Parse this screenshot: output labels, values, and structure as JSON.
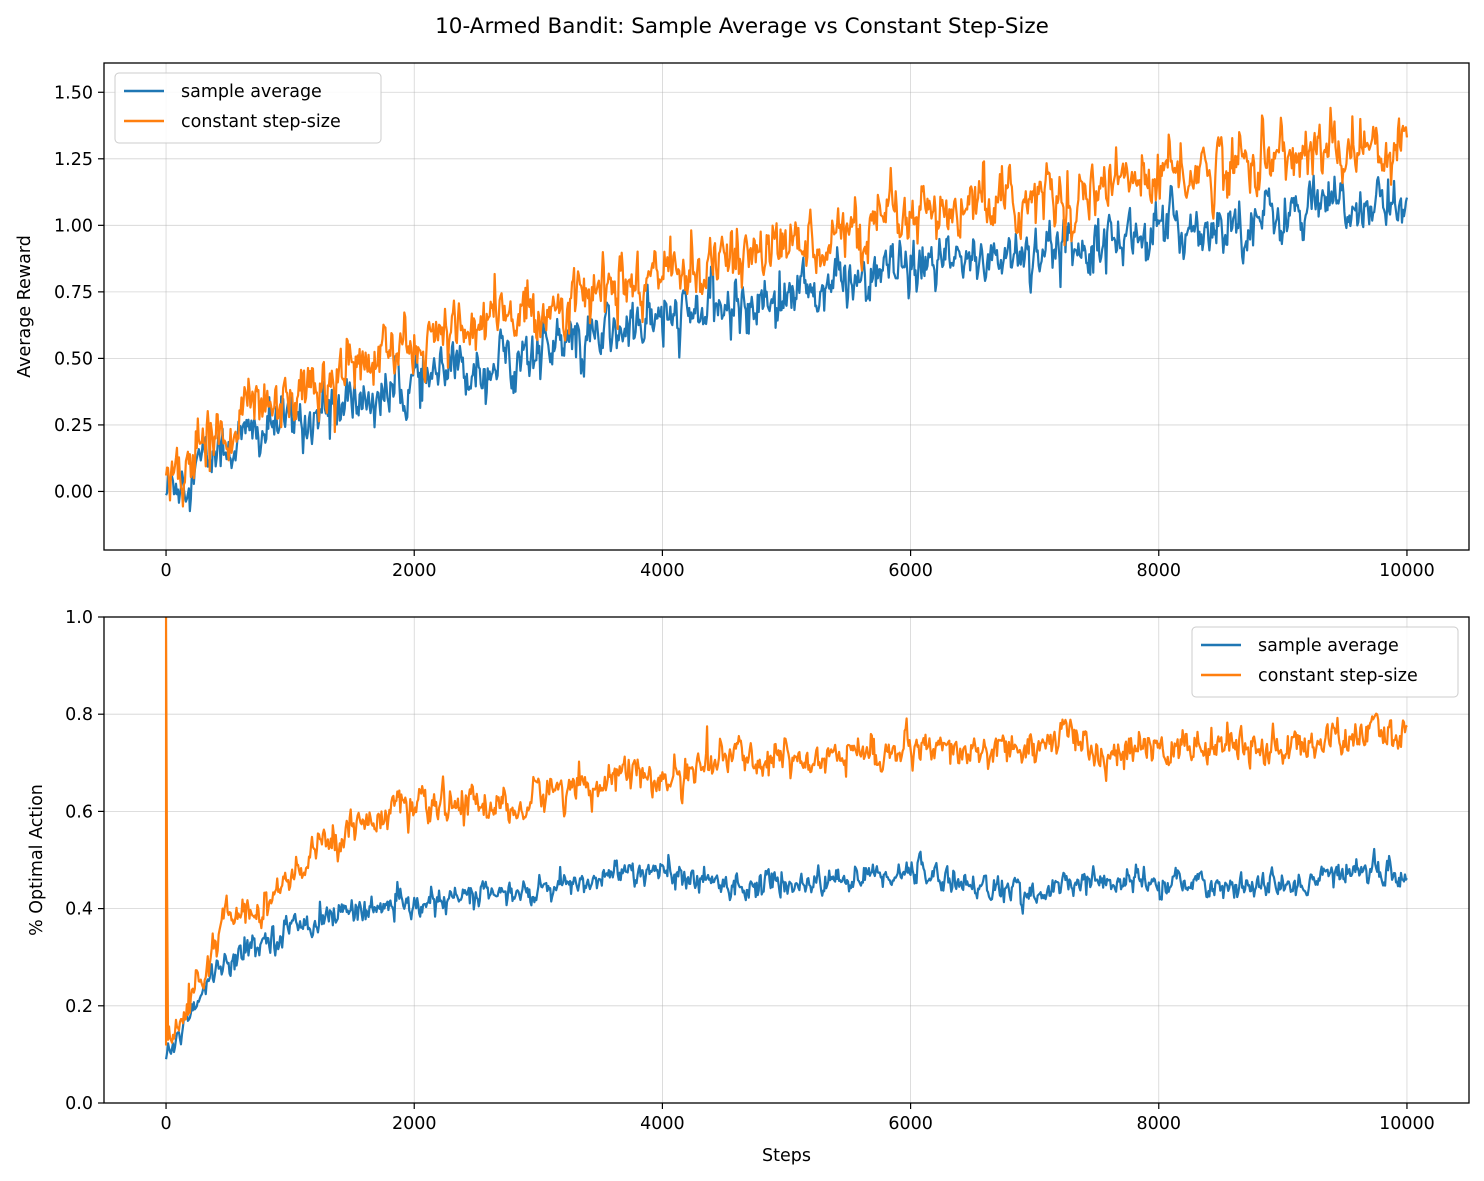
{
  "figure": {
    "title": "10-Armed Bandit: Sample Average vs Constant Step-Size"
  },
  "colors": {
    "sample_average": "#1f77b4",
    "constant_step_size": "#ff7f0e",
    "grid": "#b0b0b0",
    "axes": "#000000"
  },
  "chart_data": [
    {
      "type": "line",
      "title": "",
      "xlabel": "",
      "ylabel": "Average Reward",
      "xlim": [
        -500,
        10500
      ],
      "ylim": [
        -0.22,
        1.61
      ],
      "xticks": [
        0,
        2000,
        4000,
        6000,
        8000,
        10000
      ],
      "xtick_labels": [
        "0",
        "2000",
        "4000",
        "6000",
        "8000",
        "10000"
      ],
      "yticks": [
        0.0,
        0.25,
        0.5,
        0.75,
        1.0,
        1.25,
        1.5
      ],
      "ytick_labels": [
        "0.00",
        "0.25",
        "0.50",
        "0.75",
        "1.00",
        "1.25",
        "1.50"
      ],
      "grid": true,
      "legend_position": "upper-left",
      "series": [
        {
          "name": "sample average",
          "color_key": "sample_average",
          "x": [
            0,
            100,
            250,
            500,
            750,
            1000,
            1500,
            2000,
            2500,
            3000,
            3500,
            4000,
            4500,
            5000,
            5500,
            6000,
            6500,
            7000,
            7500,
            8000,
            8500,
            9000,
            9500,
            10000
          ],
          "values": [
            0.0,
            0.05,
            0.1,
            0.17,
            0.22,
            0.26,
            0.33,
            0.4,
            0.47,
            0.53,
            0.58,
            0.64,
            0.69,
            0.74,
            0.79,
            0.83,
            0.87,
            0.91,
            0.95,
            0.98,
            1.01,
            1.04,
            1.07,
            1.09
          ],
          "noise": 0.045
        },
        {
          "name": "constant step-size",
          "color_key": "constant_step_size",
          "x": [
            0,
            100,
            250,
            500,
            750,
            1000,
            1500,
            2000,
            2500,
            3000,
            3500,
            4000,
            4500,
            5000,
            5500,
            6000,
            6500,
            7000,
            7500,
            8000,
            8500,
            9000,
            9500,
            10000
          ],
          "values": [
            0.02,
            0.08,
            0.16,
            0.25,
            0.32,
            0.37,
            0.46,
            0.54,
            0.62,
            0.69,
            0.75,
            0.81,
            0.87,
            0.92,
            0.97,
            1.01,
            1.06,
            1.1,
            1.14,
            1.18,
            1.22,
            1.26,
            1.29,
            1.31
          ],
          "noise": 0.05
        }
      ]
    },
    {
      "type": "line",
      "title": "",
      "xlabel": "Steps",
      "ylabel": "% Optimal Action",
      "xlim": [
        -500,
        10500
      ],
      "ylim": [
        0.0,
        1.0
      ],
      "xticks": [
        0,
        2000,
        4000,
        6000,
        8000,
        10000
      ],
      "xtick_labels": [
        "0",
        "2000",
        "4000",
        "6000",
        "8000",
        "10000"
      ],
      "yticks": [
        0.0,
        0.2,
        0.4,
        0.6,
        0.8,
        1.0
      ],
      "ytick_labels": [
        "0.0",
        "0.2",
        "0.4",
        "0.6",
        "0.8",
        "1.0"
      ],
      "grid": true,
      "legend_position": "upper-right",
      "series": [
        {
          "name": "sample average",
          "color_key": "sample_average",
          "x": [
            0,
            50,
            150,
            300,
            500,
            750,
            1000,
            1250,
            1500,
            1750,
            2000,
            2500,
            3000,
            3500,
            3600,
            4000,
            4500,
            5000,
            5500,
            6000,
            6500,
            7000,
            7500,
            8000,
            8500,
            9000,
            9500,
            10000
          ],
          "values": [
            0.1,
            0.11,
            0.17,
            0.24,
            0.3,
            0.33,
            0.36,
            0.38,
            0.4,
            0.4,
            0.4,
            0.43,
            0.43,
            0.46,
            0.48,
            0.47,
            0.45,
            0.45,
            0.46,
            0.48,
            0.45,
            0.43,
            0.46,
            0.45,
            0.45,
            0.44,
            0.48,
            0.47
          ],
          "noise": 0.012
        },
        {
          "name": "constant step-size",
          "color_key": "constant_step_size",
          "x": [
            0,
            5,
            10,
            50,
            150,
            300,
            500,
            750,
            1000,
            1250,
            1500,
            1750,
            2000,
            2500,
            2900,
            3000,
            3500,
            3600,
            4000,
            4300,
            4500,
            5000,
            5500,
            6000,
            6500,
            7000,
            7400,
            7500,
            8000,
            8500,
            9000,
            9500,
            10000
          ],
          "values": [
            1.0,
            1.0,
            0.12,
            0.13,
            0.18,
            0.27,
            0.38,
            0.41,
            0.45,
            0.53,
            0.57,
            0.6,
            0.6,
            0.62,
            0.6,
            0.64,
            0.66,
            0.69,
            0.66,
            0.69,
            0.71,
            0.71,
            0.72,
            0.72,
            0.72,
            0.73,
            0.76,
            0.71,
            0.73,
            0.74,
            0.73,
            0.75,
            0.77
          ],
          "noise": 0.016
        }
      ]
    }
  ]
}
